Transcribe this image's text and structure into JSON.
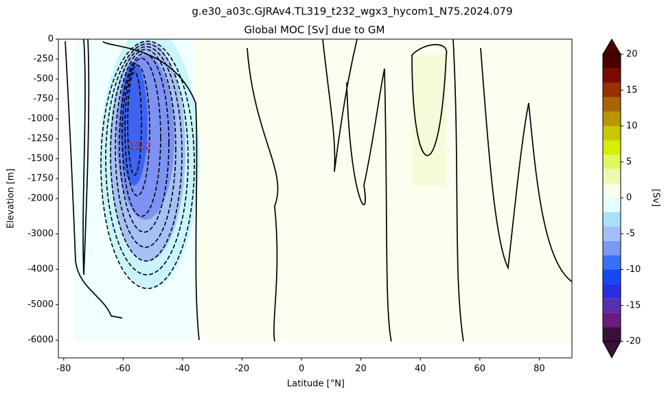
{
  "chart_data": {
    "type": "contour",
    "title": "g.e30_a03c.GJRAv4.TL319_t232_wgx3_hycom1_N75.2024.079",
    "subtitle": "Global MOC [Sv] due to GM",
    "x_label": "Latitude [°N]",
    "y_label": "Elevation [m]",
    "xlim": [
      -81.8,
      91
    ],
    "xticks": [
      -80,
      -60,
      -40,
      -20,
      0,
      20,
      40,
      60,
      80
    ],
    "ylim": [
      -6500,
      0
    ],
    "ysplit": -2000,
    "yticks": [
      0,
      -250,
      -500,
      -750,
      -1000,
      -1250,
      -1500,
      -1750,
      -2000,
      -3000,
      -4000,
      -5000,
      -6000
    ],
    "annotations": [
      {
        "text": "-13.2",
        "x": -55,
        "y": -1350,
        "color": "#e8142a"
      }
    ],
    "colorbar": {
      "label": "[Sv]",
      "lim": [
        -20,
        20
      ],
      "ticks": [
        -20,
        -15,
        -10,
        -5,
        0,
        5,
        10,
        15,
        20
      ],
      "colors": [
        "#3b0f3b",
        "#6a1a80",
        "#5a30b0",
        "#2a2ee0",
        "#1448f5",
        "#3a6ff7",
        "#7a98f5",
        "#a4bff5",
        "#a8e0f5",
        "#e4ffff",
        "#f8ffe8",
        "#eef8b0",
        "#e0f860",
        "#d6ee00",
        "#c8c800",
        "#b89600",
        "#a86400",
        "#983000",
        "#7a0a00",
        "#4a0000"
      ]
    }
  }
}
